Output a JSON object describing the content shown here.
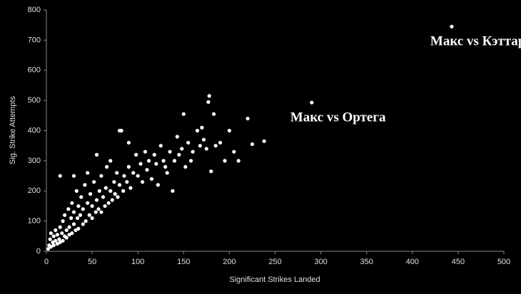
{
  "chart_data": {
    "type": "scatter",
    "x_label": "Significant Strikes Landed",
    "y_label": "Sig. Strike Attempts",
    "color": "#ffffff",
    "xlim": [
      0,
      500
    ],
    "xticks": [
      0,
      50,
      100,
      150,
      200,
      250,
      300,
      350,
      400,
      450,
      500
    ],
    "ylim": [
      0,
      800
    ],
    "yticks": [
      0,
      100,
      200,
      300,
      400,
      500,
      600,
      700,
      800
    ],
    "grid": false,
    "x": [
      2,
      3,
      4,
      5,
      5,
      7,
      8,
      8,
      10,
      10,
      12,
      12,
      14,
      15,
      15,
      17,
      18,
      18,
      20,
      20,
      22,
      22,
      24,
      25,
      25,
      27,
      28,
      28,
      30,
      30,
      32,
      33,
      34,
      35,
      35,
      37,
      38,
      40,
      40,
      42,
      43,
      45,
      45,
      47,
      48,
      50,
      50,
      52,
      54,
      55,
      55,
      57,
      58,
      60,
      60,
      62,
      64,
      65,
      66,
      68,
      70,
      70,
      72,
      74,
      75,
      77,
      78,
      80,
      82,
      84,
      85,
      88,
      90,
      90,
      92,
      95,
      98,
      100,
      103,
      105,
      108,
      110,
      112,
      115,
      118,
      120,
      122,
      125,
      128,
      130,
      132,
      135,
      138,
      140,
      143,
      145,
      148,
      150,
      152,
      155,
      158,
      160,
      165,
      168,
      170,
      172,
      175,
      177,
      178,
      180,
      183,
      185,
      190,
      195,
      200,
      205,
      210,
      220,
      225,
      238,
      15,
      30,
      80,
      290,
      443
    ],
    "y": [
      8,
      20,
      40,
      60,
      15,
      30,
      50,
      20,
      35,
      70,
      25,
      55,
      40,
      80,
      30,
      60,
      100,
      35,
      50,
      120,
      70,
      45,
      140,
      80,
      55,
      110,
      160,
      60,
      90,
      130,
      70,
      200,
      110,
      150,
      75,
      120,
      180,
      90,
      140,
      220,
      100,
      160,
      260,
      120,
      190,
      110,
      150,
      230,
      130,
      170,
      320,
      140,
      200,
      130,
      250,
      180,
      150,
      210,
      280,
      160,
      200,
      300,
      170,
      230,
      190,
      260,
      180,
      220,
      400,
      200,
      250,
      230,
      280,
      360,
      210,
      260,
      320,
      250,
      290,
      230,
      330,
      270,
      300,
      240,
      320,
      290,
      220,
      350,
      300,
      280,
      260,
      330,
      200,
      300,
      380,
      320,
      340,
      455,
      280,
      360,
      300,
      330,
      400,
      350,
      410,
      370,
      340,
      495,
      515,
      265,
      455,
      350,
      360,
      300,
      400,
      330,
      300,
      440,
      355,
      365,
      250,
      250,
      400,
      493,
      745
    ],
    "annotations": [
      {
        "text": "Макс vs Кэттар",
        "x": 443,
        "y": 745
      },
      {
        "text": "Макс vs Ортега",
        "x": 290,
        "y": 493
      }
    ]
  }
}
